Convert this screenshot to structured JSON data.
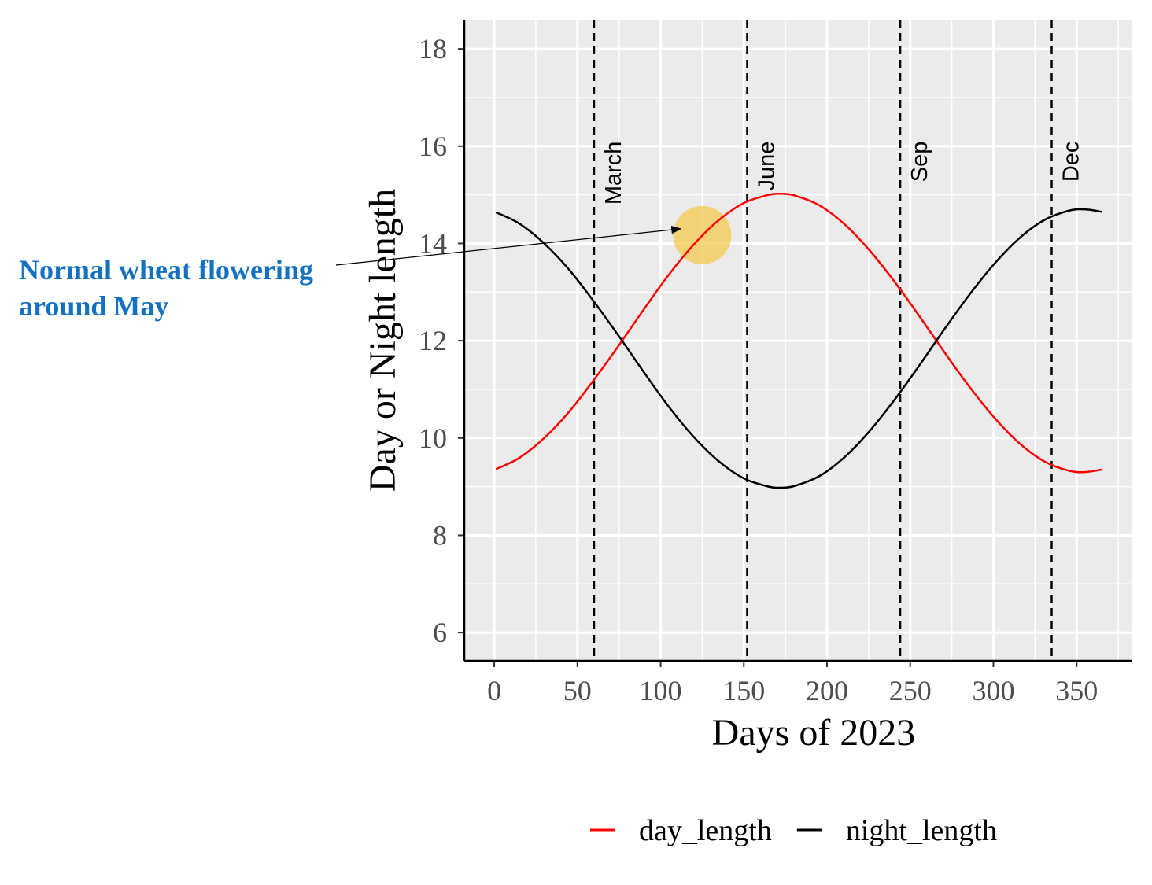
{
  "chart_data": {
    "type": "line",
    "xlabel": "Days of 2023",
    "ylabel": "Day or Night length",
    "xlim": [
      -18,
      383
    ],
    "ylim": [
      5.42,
      18.6
    ],
    "xticks": [
      0,
      50,
      100,
      150,
      200,
      250,
      300,
      350
    ],
    "yticks": [
      6,
      8,
      10,
      12,
      14,
      16,
      18
    ],
    "grid": true,
    "panel_background": "#ebebeb",
    "legend_position": "bottom",
    "x": [
      1,
      15,
      30,
      45,
      60,
      75,
      90,
      105,
      120,
      135,
      150,
      165,
      172,
      180,
      195,
      210,
      225,
      240,
      255,
      270,
      285,
      300,
      315,
      330,
      345,
      355,
      365
    ],
    "series": [
      {
        "name": "day_length",
        "color": "#ff0000",
        "values": [
          9.36,
          9.59,
          10.0,
          10.54,
          11.2,
          11.91,
          12.65,
          13.36,
          13.98,
          14.48,
          14.83,
          15.0,
          15.02,
          14.99,
          14.79,
          14.41,
          13.88,
          13.24,
          12.53,
          11.79,
          11.08,
          10.44,
          9.91,
          9.53,
          9.33,
          9.3,
          9.35
        ]
      },
      {
        "name": "night_length",
        "color": "#000000",
        "values": [
          14.64,
          14.41,
          14.0,
          13.46,
          12.8,
          12.09,
          11.35,
          10.64,
          10.02,
          9.52,
          9.17,
          9.0,
          8.98,
          9.01,
          9.21,
          9.59,
          10.12,
          10.76,
          11.47,
          12.21,
          12.92,
          13.56,
          14.09,
          14.47,
          14.67,
          14.7,
          14.65
        ]
      }
    ],
    "vlines": [
      {
        "x": 60,
        "label": "March"
      },
      {
        "x": 152,
        "label": "June"
      },
      {
        "x": 244,
        "label": "Sep"
      },
      {
        "x": 335,
        "label": "Dec"
      }
    ],
    "highlight": {
      "x": 125,
      "y": 14.17,
      "color": "#f5c842"
    },
    "annotation": {
      "lines": [
        "Normal wheat flowering",
        "around May"
      ],
      "color": "#1470c0",
      "points_to": {
        "x": 112,
        "y": 14.3
      }
    }
  }
}
